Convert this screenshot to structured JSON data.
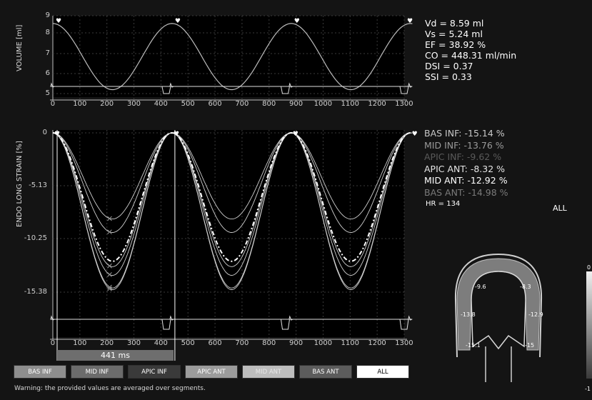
{
  "volume_panel": {
    "ylabel": "VOLUME [ml]",
    "y_ticks": [
      "9",
      "8",
      "7",
      "6",
      "5"
    ],
    "x_ticks": [
      "0",
      "100",
      "200",
      "300",
      "400",
      "500",
      "600",
      "700",
      "800",
      "900",
      "1000",
      "1100",
      "1200",
      "1300"
    ]
  },
  "strain_panel": {
    "ylabel": "ENDO LONG STRAIN [%]",
    "y_ticks": [
      "0",
      "-5.13",
      "-10.25",
      "-15.38"
    ],
    "x_ticks": [
      "0",
      "100",
      "200",
      "300",
      "400",
      "500",
      "600",
      "700",
      "800",
      "900",
      "1000",
      "1100",
      "1200",
      "1300"
    ],
    "interval_label": "441 ms"
  },
  "metrics": [
    "Vd = 8.59 ml",
    "Vs = 5.24 ml",
    "EF = 38.92 %",
    "CO = 448.31 ml/min",
    "DSI = 0.37",
    "SSI = 0.33"
  ],
  "segments": [
    {
      "label": "BAS INF: -15.14  %",
      "color": "#c8c8c8"
    },
    {
      "label": "MID INF: -13.76  %",
      "color": "#9a9a9a"
    },
    {
      "label": "APIC INF: -9.62  %",
      "color": "#5a5a5a"
    },
    {
      "label": "APIC ANT: -8.32  %",
      "color": "#e6e6e6"
    },
    {
      "label": "MID ANT: -12.92  %",
      "color": "#ffffff"
    },
    {
      "label": "BAS ANT: -14.98  %",
      "color": "#7a7a7a"
    }
  ],
  "hr": "HR = 134",
  "all_label": "ALL",
  "bullseye_values": [
    "-9.6",
    "-8.3",
    "-13.8",
    "-12.9",
    "-15.1",
    "-15"
  ],
  "colorbar": {
    "top": "0",
    "bottom": "-1"
  },
  "buttons": [
    {
      "label": "BAS INF",
      "bg": "#8e8e8e",
      "fg": "#ffffff"
    },
    {
      "label": "MID INF",
      "bg": "#6c6c6c",
      "fg": "#ffffff"
    },
    {
      "label": "APIC INF",
      "bg": "#3a3a3a",
      "fg": "#ffffff"
    },
    {
      "label": "APIC ANT",
      "bg": "#9c9c9c",
      "fg": "#ffffff"
    },
    {
      "label": "MID ANT",
      "bg": "#bdbdbd",
      "fg": "#e8e8e8"
    },
    {
      "label": "BAS ANT",
      "bg": "#5c5c5c",
      "fg": "#ffffff"
    },
    {
      "label": "ALL",
      "bg": "#ffffff",
      "fg": "#000000"
    }
  ],
  "warning": "Warning: the provided values are averaged over segments."
}
